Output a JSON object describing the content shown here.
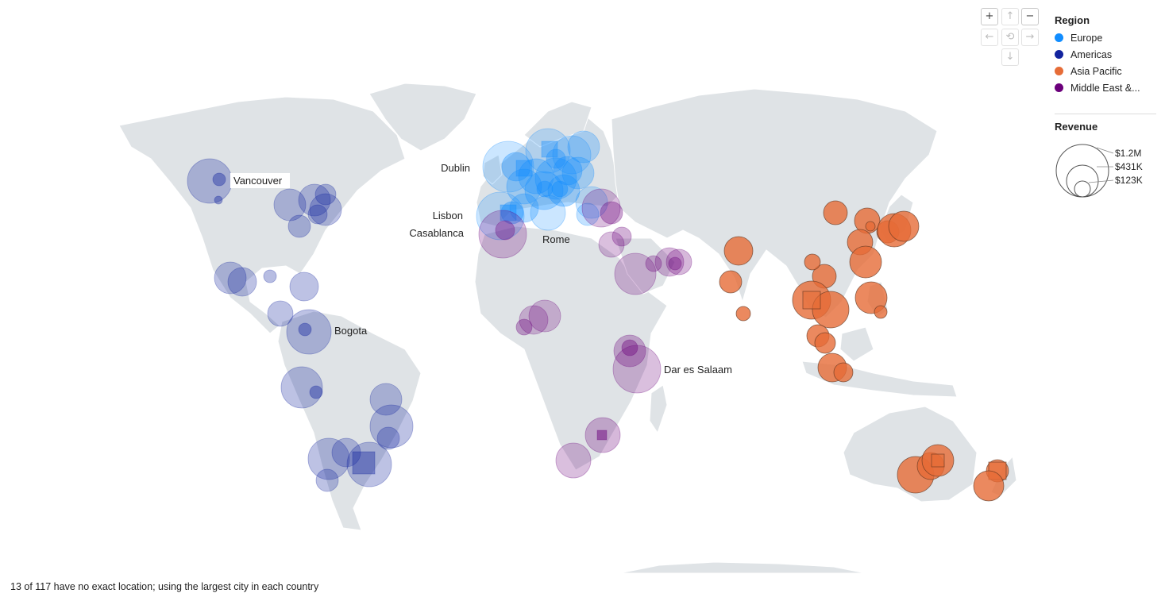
{
  "legend": {
    "title": "Region",
    "items": [
      {
        "label": "Europe",
        "color": "#118dff"
      },
      {
        "label": "Americas",
        "color": "#12239e"
      },
      {
        "label": "Asia Pacific",
        "color": "#e66c37"
      },
      {
        "label": "Middle East &...",
        "color": "#6b007b"
      }
    ]
  },
  "size_legend": {
    "title": "Revenue",
    "values": [
      "$1.2M",
      "$431K",
      "$123K"
    ]
  },
  "nav": {
    "zoom_in": "+",
    "zoom_out": "−",
    "up": "↑",
    "down": "↓",
    "left": "←",
    "right": "→",
    "reset": "⟲"
  },
  "map": {
    "land_color": "#dfe3e6",
    "city_labels": [
      "Vancouver",
      "Dublin",
      "Lisbon",
      "Casablanca",
      "Rome",
      "Bogota",
      "Dar es Salaam"
    ]
  },
  "footnote": "13 of 117 have no exact location; using the largest city in each country"
}
